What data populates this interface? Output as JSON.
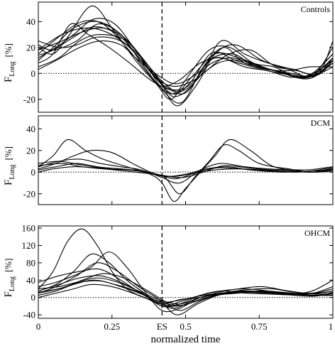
{
  "chart_data": [
    {
      "type": "line",
      "title": "Controls",
      "ylabel": {
        "main": "F",
        "sub": "Long",
        "unit": "[%]"
      },
      "ylim": [
        -30,
        55
      ],
      "yticks": [
        -20,
        0,
        20,
        40
      ],
      "xlim": [
        0,
        1
      ],
      "es_marker": 0.42,
      "baseline": 0,
      "line_color": "#000000",
      "series": [
        {
          "x": [
            0,
            0.08,
            0.15,
            0.22,
            0.3,
            0.38,
            0.42,
            0.48,
            0.55,
            0.62,
            0.7,
            0.78,
            0.86,
            0.93,
            1
          ],
          "y": [
            15,
            30,
            40,
            38,
            20,
            -2,
            -10,
            -5,
            8,
            12,
            5,
            2,
            -3,
            0,
            15
          ]
        },
        {
          "x": [
            0,
            0.05,
            0.1,
            0.18,
            0.25,
            0.33,
            0.4,
            0.45,
            0.5,
            0.58,
            0.65,
            0.73,
            0.8,
            0.9,
            1
          ],
          "y": [
            20,
            15,
            28,
            52,
            35,
            10,
            -8,
            -20,
            -5,
            18,
            20,
            8,
            5,
            -3,
            10
          ]
        },
        {
          "x": [
            0,
            0.06,
            0.12,
            0.2,
            0.28,
            0.35,
            0.42,
            0.47,
            0.52,
            0.6,
            0.68,
            0.75,
            0.83,
            0.92,
            1
          ],
          "y": [
            10,
            22,
            35,
            40,
            30,
            8,
            -12,
            -15,
            -3,
            15,
            12,
            6,
            0,
            -4,
            8
          ]
        },
        {
          "x": [
            0,
            0.07,
            0.14,
            0.21,
            0.3,
            0.37,
            0.43,
            0.49,
            0.56,
            0.63,
            0.7,
            0.79,
            0.88,
            0.95,
            1
          ],
          "y": [
            5,
            12,
            25,
            30,
            25,
            5,
            -15,
            -22,
            5,
            20,
            8,
            3,
            -2,
            0,
            12
          ]
        },
        {
          "x": [
            0,
            0.05,
            0.13,
            0.2,
            0.27,
            0.34,
            0.41,
            0.47,
            0.54,
            0.6,
            0.67,
            0.76,
            0.85,
            0.93,
            1
          ],
          "y": [
            22,
            18,
            25,
            38,
            32,
            15,
            -5,
            -25,
            -8,
            15,
            22,
            10,
            3,
            -2,
            20
          ]
        },
        {
          "x": [
            0,
            0.08,
            0.15,
            0.22,
            0.29,
            0.36,
            0.42,
            0.46,
            0.52,
            0.58,
            0.66,
            0.74,
            0.84,
            0.92,
            1
          ],
          "y": [
            18,
            25,
            32,
            35,
            28,
            10,
            -8,
            -18,
            -10,
            10,
            15,
            5,
            2,
            5,
            5
          ]
        },
        {
          "x": [
            0,
            0.06,
            0.12,
            0.19,
            0.26,
            0.33,
            0.4,
            0.46,
            0.53,
            0.61,
            0.69,
            0.77,
            0.86,
            0.94,
            1
          ],
          "y": [
            12,
            20,
            30,
            42,
            38,
            18,
            -3,
            -10,
            -5,
            8,
            10,
            4,
            0,
            -2,
            10
          ]
        },
        {
          "x": [
            0,
            0.05,
            0.11,
            0.17,
            0.24,
            0.31,
            0.38,
            0.44,
            0.5,
            0.57,
            0.65,
            0.73,
            0.82,
            0.91,
            1
          ],
          "y": [
            8,
            15,
            38,
            30,
            20,
            8,
            -5,
            -12,
            -15,
            5,
            12,
            7,
            1,
            -3,
            15
          ]
        },
        {
          "x": [
            0,
            0.07,
            0.13,
            0.2,
            0.28,
            0.35,
            0.42,
            0.48,
            0.55,
            0.62,
            0.7,
            0.78,
            0.87,
            0.95,
            1
          ],
          "y": [
            25,
            20,
            22,
            28,
            25,
            12,
            -6,
            -14,
            -2,
            25,
            15,
            8,
            3,
            0,
            25
          ]
        },
        {
          "x": [
            0,
            0.06,
            0.14,
            0.21,
            0.28,
            0.34,
            0.41,
            0.47,
            0.54,
            0.6,
            0.68,
            0.76,
            0.85,
            0.93,
            1
          ],
          "y": [
            3,
            10,
            20,
            25,
            22,
            10,
            -2,
            -8,
            0,
            12,
            8,
            3,
            -1,
            -2,
            5
          ]
        },
        {
          "x": [
            0,
            0.08,
            0.16,
            0.23,
            0.3,
            0.37,
            0.43,
            0.49,
            0.56,
            0.64,
            0.72,
            0.8,
            0.88,
            0.95,
            1
          ],
          "y": [
            18,
            30,
            35,
            32,
            22,
            5,
            -10,
            -12,
            0,
            14,
            18,
            6,
            2,
            -1,
            10
          ]
        },
        {
          "x": [
            0,
            0.05,
            0.12,
            0.19,
            0.27,
            0.33,
            0.4,
            0.46,
            0.52,
            0.59,
            0.67,
            0.75,
            0.84,
            0.92,
            1
          ],
          "y": [
            14,
            18,
            28,
            36,
            30,
            15,
            -4,
            -16,
            -6,
            16,
            10,
            5,
            0,
            -3,
            12
          ]
        }
      ]
    },
    {
      "type": "line",
      "title": "DCM",
      "ylabel": {
        "main": "F",
        "sub": "Long",
        "unit": "[%]"
      },
      "ylim": [
        -30,
        52
      ],
      "yticks": [
        -20,
        0,
        20,
        40
      ],
      "xlim": [
        0,
        1
      ],
      "es_marker": 0.42,
      "baseline": 0,
      "line_color": "#000000",
      "series": [
        {
          "x": [
            0,
            0.05,
            0.1,
            0.16,
            0.22,
            0.3,
            0.38,
            0.42,
            0.46,
            0.5,
            0.55,
            0.6,
            0.65,
            0.72,
            0.8,
            0.9,
            1
          ],
          "y": [
            5,
            15,
            30,
            20,
            12,
            5,
            -2,
            -10,
            -27,
            -15,
            0,
            15,
            30,
            20,
            5,
            2,
            5
          ]
        },
        {
          "x": [
            0,
            0.06,
            0.12,
            0.18,
            0.25,
            0.32,
            0.38,
            0.43,
            0.48,
            0.53,
            0.58,
            0.63,
            0.68,
            0.75,
            0.85,
            0.93,
            1
          ],
          "y": [
            3,
            8,
            15,
            20,
            18,
            8,
            0,
            -5,
            -20,
            -5,
            10,
            25,
            20,
            8,
            3,
            0,
            2
          ]
        },
        {
          "x": [
            0,
            0.07,
            0.14,
            0.21,
            0.28,
            0.35,
            0.42,
            0.48,
            0.55,
            0.62,
            0.7,
            0.78,
            0.86,
            0.93,
            1
          ],
          "y": [
            5,
            10,
            12,
            8,
            5,
            2,
            -5,
            -10,
            2,
            8,
            5,
            3,
            2,
            0,
            4
          ]
        },
        {
          "x": [
            0,
            0.06,
            0.13,
            0.2,
            0.27,
            0.34,
            0.41,
            0.47,
            0.54,
            0.61,
            0.69,
            0.77,
            0.85,
            0.93,
            1
          ],
          "y": [
            2,
            5,
            8,
            5,
            3,
            1,
            -3,
            -6,
            0,
            4,
            3,
            2,
            1,
            0,
            3
          ]
        },
        {
          "x": [
            0,
            0.08,
            0.15,
            0.22,
            0.3,
            0.37,
            0.43,
            0.5,
            0.57,
            0.64,
            0.72,
            0.8,
            0.88,
            0.95,
            1
          ],
          "y": [
            6,
            8,
            5,
            3,
            2,
            0,
            -4,
            -2,
            3,
            5,
            2,
            1,
            0,
            2,
            5
          ]
        },
        {
          "x": [
            0,
            0.05,
            0.12,
            0.19,
            0.26,
            0.33,
            0.4,
            0.46,
            0.53,
            0.6,
            0.68,
            0.76,
            0.84,
            0.92,
            1
          ],
          "y": [
            0,
            3,
            5,
            4,
            2,
            0,
            -2,
            -4,
            -1,
            2,
            3,
            1,
            0,
            1,
            2
          ]
        },
        {
          "x": [
            0,
            0.07,
            0.14,
            0.21,
            0.28,
            0.35,
            0.42,
            0.49,
            0.56,
            0.63,
            0.71,
            0.79,
            0.87,
            0.94,
            1
          ],
          "y": [
            8,
            10,
            7,
            4,
            3,
            1,
            -3,
            -5,
            0,
            6,
            4,
            2,
            1,
            0,
            1
          ]
        }
      ]
    },
    {
      "type": "line",
      "title": "OHCM",
      "ylabel": {
        "main": "F",
        "sub": "Long",
        "unit": "[%]"
      },
      "ylim": [
        -48,
        165
      ],
      "yticks": [
        -40,
        0,
        40,
        80,
        120,
        160
      ],
      "xlim": [
        0,
        1
      ],
      "xticks": [
        {
          "v": 0,
          "label": "0"
        },
        {
          "v": 0.25,
          "label": "0.25"
        },
        {
          "v": 0.42,
          "label": "ES"
        },
        {
          "v": 0.5,
          "label": "0.5"
        },
        {
          "v": 0.75,
          "label": "0.75"
        },
        {
          "v": 1,
          "label": "1"
        }
      ],
      "xlabel": "normalized time",
      "es_marker": 0.42,
      "baseline": 0,
      "line_color": "#000000",
      "series": [
        {
          "x": [
            0,
            0.05,
            0.1,
            0.15,
            0.2,
            0.25,
            0.3,
            0.36,
            0.42,
            0.48,
            0.55,
            0.62,
            0.7,
            0.78,
            0.86,
            0.93,
            1
          ],
          "y": [
            20,
            60,
            130,
            158,
            120,
            60,
            20,
            0,
            -15,
            -5,
            0,
            10,
            15,
            12,
            10,
            8,
            15
          ]
        },
        {
          "x": [
            0,
            0.06,
            0.12,
            0.18,
            0.24,
            0.3,
            0.36,
            0.42,
            0.48,
            0.55,
            0.62,
            0.7,
            0.78,
            0.86,
            0.93,
            1
          ],
          "y": [
            15,
            30,
            60,
            100,
            80,
            40,
            10,
            -20,
            -10,
            5,
            15,
            20,
            15,
            10,
            5,
            10
          ]
        },
        {
          "x": [
            0,
            0.06,
            0.12,
            0.18,
            0.24,
            0.3,
            0.36,
            0.42,
            0.48,
            0.55,
            0.62,
            0.7,
            0.78,
            0.86,
            0.93,
            1
          ],
          "y": [
            25,
            35,
            50,
            70,
            105,
            70,
            15,
            -30,
            -25,
            0,
            10,
            15,
            12,
            8,
            5,
            5
          ]
        },
        {
          "x": [
            0,
            0.07,
            0.14,
            0.21,
            0.28,
            0.35,
            0.42,
            0.49,
            0.56,
            0.63,
            0.7,
            0.78,
            0.86,
            0.93,
            1
          ],
          "y": [
            35,
            50,
            60,
            65,
            40,
            10,
            -10,
            -5,
            5,
            10,
            12,
            10,
            8,
            15,
            40
          ]
        },
        {
          "x": [
            0,
            0.06,
            0.13,
            0.2,
            0.27,
            0.34,
            0.41,
            0.47,
            0.54,
            0.61,
            0.68,
            0.76,
            0.84,
            0.92,
            1
          ],
          "y": [
            10,
            25,
            50,
            80,
            60,
            25,
            -5,
            -40,
            -15,
            5,
            12,
            15,
            10,
            5,
            8
          ]
        },
        {
          "x": [
            0,
            0.07,
            0.14,
            0.21,
            0.28,
            0.35,
            0.42,
            0.48,
            0.55,
            0.62,
            0.7,
            0.78,
            0.86,
            0.94,
            1
          ],
          "y": [
            15,
            30,
            45,
            50,
            35,
            10,
            -20,
            -15,
            5,
            15,
            10,
            8,
            6,
            10,
            20
          ]
        },
        {
          "x": [
            0,
            0.06,
            0.12,
            0.19,
            0.26,
            0.33,
            0.4,
            0.46,
            0.53,
            0.6,
            0.68,
            0.76,
            0.85,
            0.93,
            1
          ],
          "y": [
            5,
            15,
            30,
            40,
            30,
            15,
            -10,
            -25,
            -5,
            10,
            20,
            25,
            15,
            10,
            25
          ]
        },
        {
          "x": [
            0,
            0.07,
            0.13,
            0.2,
            0.27,
            0.34,
            0.41,
            0.48,
            0.55,
            0.62,
            0.7,
            0.78,
            0.86,
            0.93,
            1
          ],
          "y": [
            20,
            25,
            35,
            45,
            35,
            15,
            -5,
            -15,
            0,
            8,
            15,
            12,
            8,
            5,
            10
          ]
        },
        {
          "x": [
            0,
            0.06,
            0.12,
            0.18,
            0.25,
            0.32,
            0.39,
            0.46,
            0.53,
            0.6,
            0.68,
            0.76,
            0.84,
            0.92,
            1
          ],
          "y": [
            0,
            10,
            20,
            30,
            25,
            10,
            -8,
            -20,
            -10,
            5,
            10,
            15,
            10,
            5,
            5
          ]
        },
        {
          "x": [
            0,
            0.07,
            0.14,
            0.21,
            0.28,
            0.35,
            0.42,
            0.49,
            0.56,
            0.63,
            0.71,
            0.79,
            0.87,
            0.94,
            1
          ],
          "y": [
            10,
            20,
            35,
            38,
            25,
            8,
            -12,
            -18,
            -2,
            8,
            12,
            10,
            5,
            3,
            12
          ]
        },
        {
          "x": [
            0,
            0.08,
            0.15,
            0.22,
            0.29,
            0.36,
            0.42,
            0.48,
            0.55,
            0.63,
            0.71,
            0.79,
            0.87,
            0.94,
            1
          ],
          "y": [
            12,
            22,
            40,
            55,
            45,
            20,
            -5,
            -30,
            -8,
            10,
            18,
            20,
            12,
            8,
            15
          ]
        }
      ]
    }
  ]
}
